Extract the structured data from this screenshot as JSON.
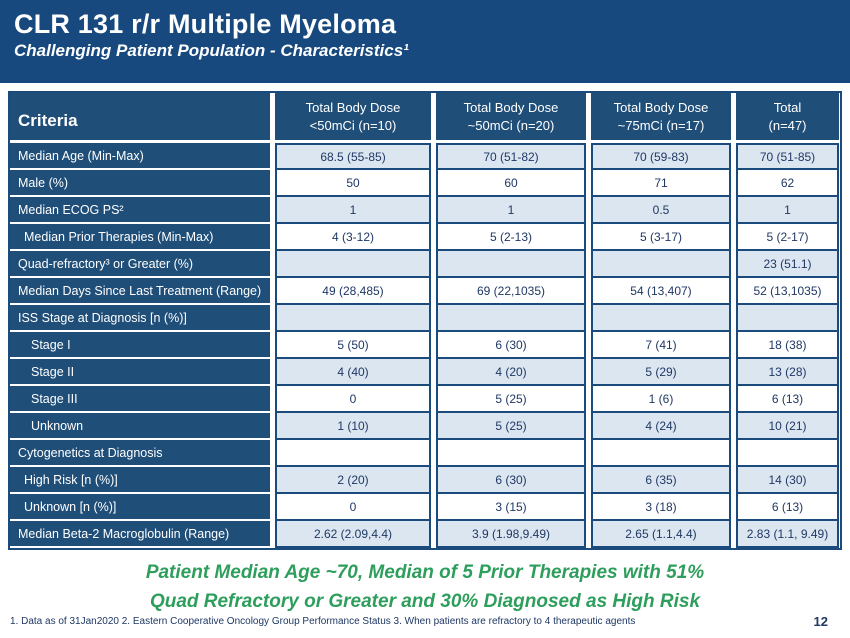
{
  "slide": {
    "title": "CLR 131 r/r Multiple Myeloma",
    "subtitle": "Challenging Patient Population - Characteristics¹",
    "summary_line1": "Patient Median Age ~70, Median of 5 Prior Therapies with 51%",
    "summary_line2": "Quad Refractory or Greater and 30% Diagnosed as High Risk",
    "footnote": "1. Data as of 31Jan2020 2. Eastern Cooperative Oncology Group Performance Status 3. When patients are refractory to 4 therapeutic agents",
    "page_number": "12"
  },
  "colors": {
    "banner_blue": "#17497E",
    "cell_blue": "#1F4E79",
    "light_blue": "#DCE6F1",
    "text_blue": "#1F3864",
    "green": "#2E9E5C"
  },
  "table": {
    "columns": [
      {
        "line1": "Criteria",
        "line2": ""
      },
      {
        "line1": "Total Body Dose",
        "line2": "<50mCi (n=10)"
      },
      {
        "line1": "Total Body Dose",
        "line2": "~50mCi (n=20)"
      },
      {
        "line1": "Total Body Dose",
        "line2": "~75mCi (n=17)"
      },
      {
        "line1": "Total",
        "line2": "(n=47)"
      }
    ],
    "rows": [
      {
        "label": "Median Age (Min-Max)",
        "indent": 0,
        "values": [
          "68.5 (55-85)",
          "70 (51-82)",
          "70 (59-83)",
          "70 (51-85)"
        ]
      },
      {
        "label": "Male (%)",
        "indent": 0,
        "values": [
          "50",
          "60",
          "71",
          "62"
        ]
      },
      {
        "label": "Median ECOG PS²",
        "indent": 0,
        "values": [
          "1",
          "1",
          "0.5",
          "1"
        ]
      },
      {
        "label": "Median Prior Therapies (Min-Max)",
        "indent": 1,
        "values": [
          "4 (3-12)",
          "5 (2-13)",
          "5 (3-17)",
          "5 (2-17)"
        ]
      },
      {
        "label": "Quad-refractory³ or Greater (%)",
        "indent": 0,
        "values": [
          "",
          "",
          "",
          "23 (51.1)"
        ]
      },
      {
        "label": "Median Days Since Last Treatment (Range)",
        "indent": 0,
        "values": [
          "49 (28,485)",
          "69 (22,1035)",
          "54 (13,407)",
          "52 (13,1035)"
        ]
      },
      {
        "label": "ISS Stage at Diagnosis [n (%)]",
        "indent": 0,
        "values": [
          "",
          "",
          "",
          ""
        ]
      },
      {
        "label": "Stage I",
        "indent": 2,
        "values": [
          "5 (50)",
          "6 (30)",
          "7 (41)",
          "18 (38)"
        ]
      },
      {
        "label": "Stage II",
        "indent": 2,
        "values": [
          "4 (40)",
          "4 (20)",
          "5 (29)",
          "13 (28)"
        ]
      },
      {
        "label": "Stage III",
        "indent": 2,
        "values": [
          "0",
          "5 (25)",
          "1 (6)",
          "6 (13)"
        ]
      },
      {
        "label": "Unknown",
        "indent": 2,
        "values": [
          "1 (10)",
          "5 (25)",
          "4 (24)",
          "10 (21)"
        ]
      },
      {
        "label": "Cytogenetics at Diagnosis",
        "indent": 0,
        "values": [
          "",
          "",
          "",
          ""
        ]
      },
      {
        "label": "High Risk [n (%)]",
        "indent": 1,
        "values": [
          "2 (20)",
          "6 (30)",
          "6 (35)",
          "14 (30)"
        ]
      },
      {
        "label": "Unknown [n (%)]",
        "indent": 1,
        "values": [
          "0",
          "3 (15)",
          "3 (18)",
          "6 (13)"
        ]
      },
      {
        "label": "Median Beta-2 Macroglobulin (Range)",
        "indent": 0,
        "values": [
          "2.62 (2.09,4.4)",
          "3.9 (1.98,9.49)",
          "2.65 (1.1,4.4)",
          "2.83 (1.1, 9.49)"
        ]
      }
    ]
  }
}
